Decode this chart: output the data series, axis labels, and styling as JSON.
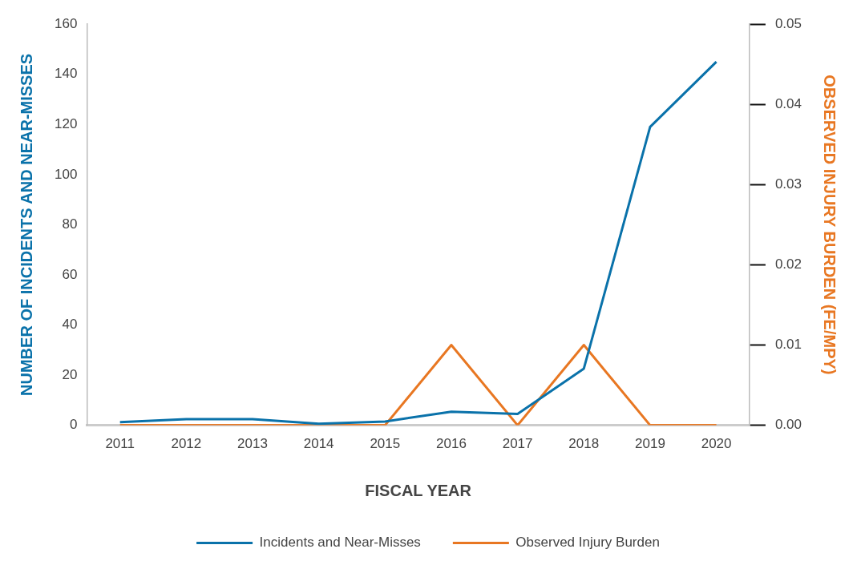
{
  "chart_data": {
    "type": "line",
    "xlabel": "FISCAL YEAR",
    "ylabel": "NUMBER OF INCIDENTS AND NEAR-MISSES",
    "y2label": "OBSERVED INJURY BURDEN (FE/MPY)",
    "categories": [
      "2011",
      "2012",
      "2013",
      "2014",
      "2015",
      "2016",
      "2017",
      "2018",
      "2019",
      "2020"
    ],
    "series": [
      {
        "name": "Incidents and Near-Misses",
        "color": "#0a72aa",
        "values": [
          1.2,
          2.4,
          2.4,
          0.6,
          1.5,
          5.4,
          4.5,
          22.6,
          119,
          145
        ]
      },
      {
        "name": "Observed Injury Burden",
        "color": "#e87722",
        "axis": "y2",
        "values": [
          0,
          0,
          0,
          0,
          0,
          0.01,
          0,
          0.01,
          0,
          0
        ]
      }
    ],
    "ylim": [
      0,
      160
    ],
    "yticks": [
      0,
      20,
      40,
      60,
      80,
      100,
      120,
      140,
      160
    ],
    "y2lim": [
      0,
      0.05
    ],
    "y2ticks": [
      {
        "value": 0,
        "label": "0.00"
      },
      0.01,
      0.02,
      0.03,
      0.04,
      0.05
    ],
    "grid": false,
    "legend": "bottom",
    "marker": "none",
    "line_style": "solid"
  }
}
